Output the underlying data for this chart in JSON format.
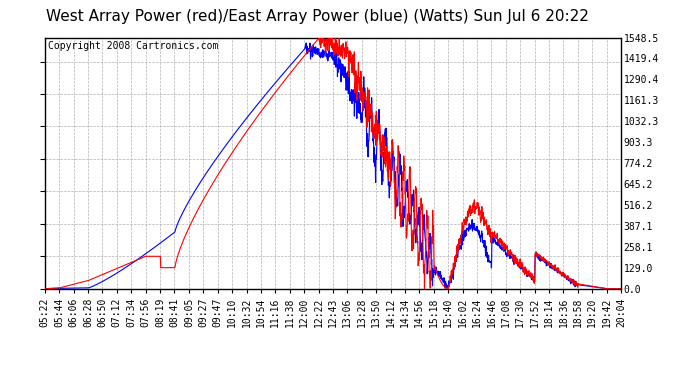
{
  "title": "West Array Power (red)/East Array Power (blue) (Watts) Sun Jul 6 20:22",
  "copyright": "Copyright 2008 Cartronics.com",
  "ylabel_right_ticks": [
    0.0,
    129.0,
    258.1,
    387.1,
    516.2,
    645.2,
    774.2,
    903.3,
    1032.3,
    1161.3,
    1290.4,
    1419.4,
    1548.5
  ],
  "ylim": [
    0,
    1548.5
  ],
  "bg_color": "#ffffff",
  "plot_bg_color": "#ffffff",
  "grid_color": "#b0b0b0",
  "red_color": "#ff0000",
  "blue_color": "#0000ff",
  "title_fontsize": 11,
  "copyright_fontsize": 7,
  "tick_fontsize": 7,
  "x_tick_labels": [
    "05:22",
    "05:44",
    "06:06",
    "06:28",
    "06:50",
    "07:12",
    "07:34",
    "07:56",
    "08:19",
    "08:41",
    "09:05",
    "09:27",
    "09:47",
    "10:10",
    "10:32",
    "10:54",
    "11:16",
    "11:38",
    "12:00",
    "12:22",
    "12:43",
    "13:06",
    "13:28",
    "13:50",
    "14:12",
    "14:34",
    "14:56",
    "15:18",
    "15:40",
    "16:02",
    "16:24",
    "16:46",
    "17:08",
    "17:30",
    "17:52",
    "18:14",
    "18:36",
    "18:58",
    "19:20",
    "19:42",
    "20:04"
  ]
}
